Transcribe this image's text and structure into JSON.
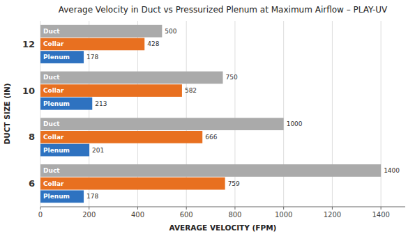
{
  "chart_data": {
    "type": "bar",
    "orientation": "horizontal",
    "title": "Average Velocity in Duct vs Pressurized Plenum at Maximum Airflow – PLAY-UV",
    "x_label": "AVERAGE VELOCITY (FPM)",
    "y_label": "DUCT SIZE (IN)",
    "categories": [
      "6",
      "8",
      "10",
      "12"
    ],
    "series": [
      {
        "name": "Duct",
        "color": "#aaaaaa",
        "values": [
          1400,
          1000,
          750,
          500
        ]
      },
      {
        "name": "Collar",
        "color": "#e87020",
        "values": [
          759,
          666,
          582,
          428
        ]
      },
      {
        "name": "Plenum",
        "color": "#2e72c0",
        "values": [
          178,
          201,
          213,
          178
        ]
      }
    ],
    "xlim": [
      0,
      1500
    ],
    "xticks": [
      0,
      200,
      400,
      600,
      800,
      1000,
      1200,
      1400
    ],
    "grid": true,
    "data_labels": true
  }
}
